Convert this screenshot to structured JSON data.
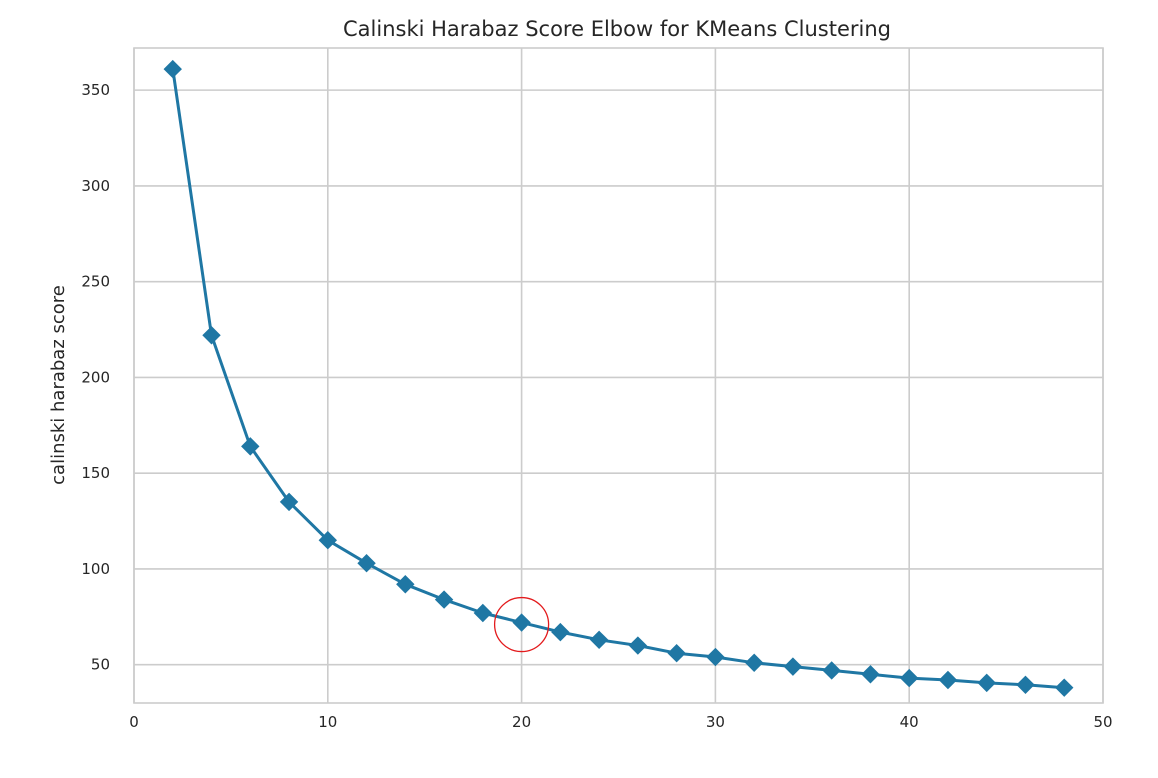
{
  "chart_data": {
    "type": "line",
    "title": "Calinski Harabaz Score Elbow for KMeans Clustering",
    "xlabel": "",
    "ylabel": "calinski harabaz score",
    "xlim": [
      0,
      50
    ],
    "ylim": [
      30,
      372
    ],
    "xticks": [
      0,
      10,
      20,
      30,
      40,
      50
    ],
    "yticks": [
      50,
      100,
      150,
      200,
      250,
      300,
      350
    ],
    "grid": true,
    "series": [
      {
        "color": "#1f77a4",
        "marker": "diamond",
        "x": [
          2,
          4,
          6,
          8,
          10,
          12,
          14,
          16,
          18,
          20,
          22,
          24,
          26,
          28,
          30,
          32,
          34,
          36,
          38,
          40,
          42,
          44,
          46,
          48
        ],
        "y": [
          361,
          222,
          164,
          135,
          115,
          103,
          92,
          84,
          77,
          72,
          67,
          63,
          60,
          56,
          54,
          51,
          49,
          47,
          45,
          43,
          42,
          40.5,
          39.5,
          38
        ]
      }
    ],
    "annotations": [
      {
        "type": "circle",
        "x": 20,
        "y": 72,
        "color": "#e31a1c"
      }
    ]
  }
}
